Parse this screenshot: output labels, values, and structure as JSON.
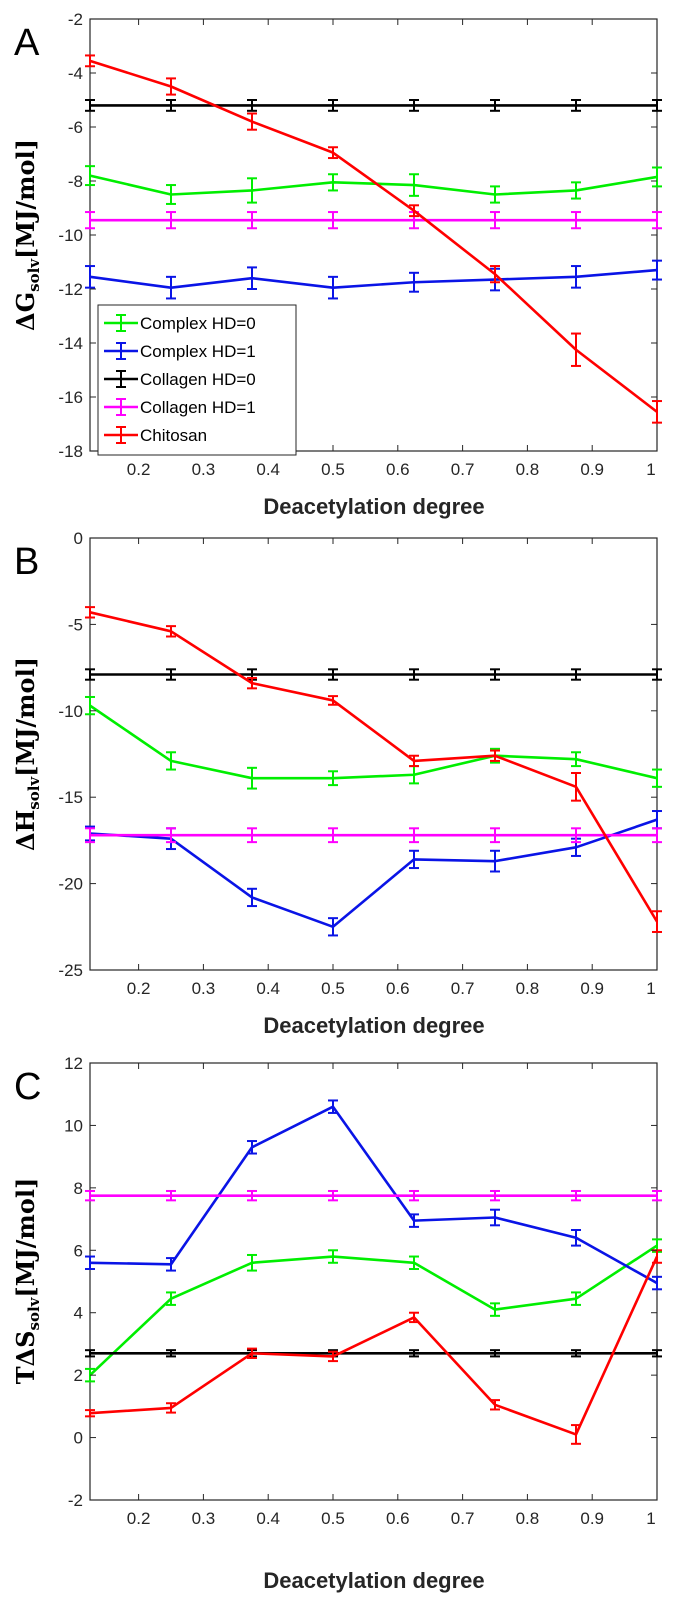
{
  "colors": {
    "complex_hd0": "#00ee00",
    "complex_hd1": "#0a14e6",
    "collagen_hd0": "#000000",
    "collagen_hd1": "#ff00ff",
    "chitosan": "#ff0000"
  },
  "chart_data": [
    {
      "panel": "A",
      "type": "line",
      "xlabel": "Deacetylation degree",
      "ylabel_main": "ΔG",
      "ylabel_sub": "solv",
      "ylabel_unit": "[MJ/mol]",
      "xlim": [
        0.125,
        1
      ],
      "ylim": [
        -18,
        -2
      ],
      "xticks": [
        "0.2",
        "0.3",
        "0.4",
        "0.5",
        "0.6",
        "0.7",
        "0.8",
        "0.9",
        "1"
      ],
      "yticks": [
        "-2",
        "-4",
        "-6",
        "-8",
        "-10",
        "-12",
        "-14",
        "-16",
        "-18"
      ],
      "x": [
        0.125,
        0.25,
        0.375,
        0.5,
        0.625,
        0.75,
        0.875,
        1
      ],
      "legend": {
        "position": "lower-left"
      },
      "series": [
        {
          "name": "Complex HD=0",
          "color_key": "complex_hd0",
          "values": [
            -7.8,
            -8.5,
            -8.35,
            -8.05,
            -8.15,
            -8.5,
            -8.35,
            -7.85
          ],
          "errors": [
            0.35,
            0.35,
            0.45,
            0.3,
            0.4,
            0.3,
            0.3,
            0.35
          ]
        },
        {
          "name": "Complex HD=1",
          "color_key": "complex_hd1",
          "values": [
            -11.55,
            -11.95,
            -11.6,
            -11.95,
            -11.75,
            -11.65,
            -11.55,
            -11.3
          ],
          "errors": [
            0.4,
            0.4,
            0.4,
            0.4,
            0.35,
            0.4,
            0.4,
            0.35
          ]
        },
        {
          "name": "Collagen HD=0",
          "color_key": "collagen_hd0",
          "values": [
            -5.2,
            -5.2,
            -5.2,
            -5.2,
            -5.2,
            -5.2,
            -5.2,
            -5.2
          ],
          "errors": [
            0.2,
            0.2,
            0.2,
            0.2,
            0.2,
            0.2,
            0.2,
            0.2
          ]
        },
        {
          "name": "Collagen HD=1",
          "color_key": "collagen_hd1",
          "values": [
            -9.45,
            -9.45,
            -9.45,
            -9.45,
            -9.45,
            -9.45,
            -9.45,
            -9.45
          ],
          "errors": [
            0.3,
            0.3,
            0.3,
            0.3,
            0.3,
            0.3,
            0.3,
            0.3
          ]
        },
        {
          "name": "Chitosan",
          "color_key": "chitosan",
          "values": [
            -3.55,
            -4.5,
            -5.8,
            -6.95,
            -9.1,
            -11.45,
            -14.25,
            -16.55
          ],
          "errors": [
            0.2,
            0.3,
            0.3,
            0.2,
            0.2,
            0.3,
            0.6,
            0.4
          ]
        }
      ]
    },
    {
      "panel": "B",
      "type": "line",
      "xlabel": "Deacetylation degree",
      "ylabel_main": "ΔH",
      "ylabel_sub": "solv",
      "ylabel_unit": "[MJ/mol]",
      "xlim": [
        0.125,
        1
      ],
      "ylim": [
        -25,
        0
      ],
      "xticks": [
        "0.2",
        "0.3",
        "0.4",
        "0.5",
        "0.6",
        "0.7",
        "0.8",
        "0.9",
        "1"
      ],
      "yticks": [
        "0",
        "-5",
        "-10",
        "-15",
        "-20",
        "-25"
      ],
      "x": [
        0.125,
        0.25,
        0.375,
        0.5,
        0.625,
        0.75,
        0.875,
        1
      ],
      "series": [
        {
          "name": "Complex HD=0",
          "color_key": "complex_hd0",
          "values": [
            -9.7,
            -12.9,
            -13.9,
            -13.9,
            -13.7,
            -12.6,
            -12.8,
            -13.9
          ],
          "errors": [
            0.5,
            0.5,
            0.6,
            0.4,
            0.5,
            0.4,
            0.4,
            0.5
          ]
        },
        {
          "name": "Complex HD=1",
          "color_key": "complex_hd1",
          "values": [
            -17.1,
            -17.4,
            -20.8,
            -22.5,
            -18.6,
            -18.7,
            -17.9,
            -16.3
          ],
          "errors": [
            0.4,
            0.6,
            0.5,
            0.5,
            0.5,
            0.6,
            0.5,
            0.5
          ]
        },
        {
          "name": "Collagen HD=0",
          "color_key": "collagen_hd0",
          "values": [
            -7.9,
            -7.9,
            -7.9,
            -7.9,
            -7.9,
            -7.9,
            -7.9,
            -7.9
          ],
          "errors": [
            0.3,
            0.3,
            0.3,
            0.3,
            0.3,
            0.3,
            0.3,
            0.3
          ]
        },
        {
          "name": "Collagen HD=1",
          "color_key": "collagen_hd1",
          "values": [
            -17.2,
            -17.2,
            -17.2,
            -17.2,
            -17.2,
            -17.2,
            -17.2,
            -17.2
          ],
          "errors": [
            0.4,
            0.4,
            0.4,
            0.4,
            0.4,
            0.4,
            0.4,
            0.4
          ]
        },
        {
          "name": "Chitosan",
          "color_key": "chitosan",
          "values": [
            -4.3,
            -5.4,
            -8.4,
            -9.4,
            -12.9,
            -12.6,
            -14.4,
            -22.2
          ],
          "errors": [
            0.3,
            0.3,
            0.3,
            0.25,
            0.3,
            0.3,
            0.8,
            0.6
          ]
        }
      ]
    },
    {
      "panel": "C",
      "type": "line",
      "xlabel": "Deacetylation degree",
      "ylabel_main": "TΔS",
      "ylabel_sub": "solv",
      "ylabel_unit": "[MJ/mol]",
      "xlim": [
        0.125,
        1
      ],
      "ylim": [
        -2,
        12
      ],
      "xticks": [
        "0.2",
        "0.3",
        "0.4",
        "0.5",
        "0.6",
        "0.7",
        "0.8",
        "0.9",
        "1"
      ],
      "yticks": [
        "12",
        "10",
        "8",
        "6",
        "4",
        "2",
        "0",
        "-2"
      ],
      "x": [
        0.125,
        0.25,
        0.375,
        0.5,
        0.625,
        0.75,
        0.875,
        1
      ],
      "series": [
        {
          "name": "Complex HD=0",
          "color_key": "complex_hd0",
          "values": [
            2.0,
            4.45,
            5.6,
            5.8,
            5.6,
            4.1,
            4.45,
            6.15
          ],
          "errors": [
            0.2,
            0.2,
            0.25,
            0.2,
            0.2,
            0.2,
            0.2,
            0.2
          ]
        },
        {
          "name": "Complex HD=1",
          "color_key": "complex_hd1",
          "values": [
            5.6,
            5.55,
            9.3,
            10.6,
            6.95,
            7.05,
            6.4,
            4.95
          ],
          "errors": [
            0.2,
            0.2,
            0.2,
            0.2,
            0.2,
            0.25,
            0.25,
            0.2
          ]
        },
        {
          "name": "Collagen HD=0",
          "color_key": "collagen_hd0",
          "values": [
            2.7,
            2.7,
            2.7,
            2.7,
            2.7,
            2.7,
            2.7,
            2.7
          ],
          "errors": [
            0.1,
            0.1,
            0.1,
            0.1,
            0.1,
            0.1,
            0.1,
            0.1
          ]
        },
        {
          "name": "Collagen HD=1",
          "color_key": "collagen_hd1",
          "values": [
            7.75,
            7.75,
            7.75,
            7.75,
            7.75,
            7.75,
            7.75,
            7.75
          ],
          "errors": [
            0.15,
            0.15,
            0.15,
            0.15,
            0.15,
            0.15,
            0.15,
            0.15
          ]
        },
        {
          "name": "Chitosan",
          "color_key": "chitosan",
          "values": [
            0.78,
            0.95,
            2.7,
            2.6,
            3.85,
            1.05,
            0.1,
            5.8
          ],
          "errors": [
            0.1,
            0.15,
            0.15,
            0.15,
            0.15,
            0.15,
            0.3,
            0.2
          ]
        }
      ]
    }
  ]
}
